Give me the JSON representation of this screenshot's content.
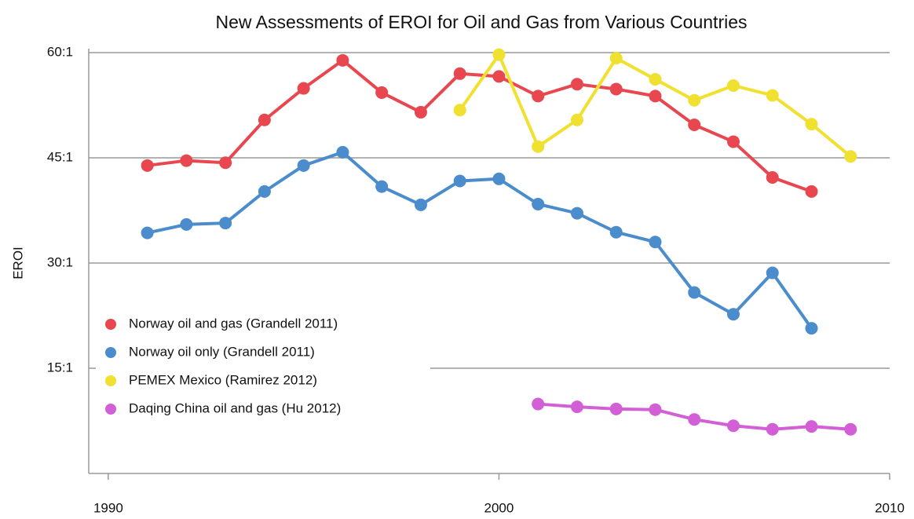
{
  "chart_data": {
    "type": "line",
    "title": "New Assessments of EROI for Oil and Gas from Various Countries",
    "ylabel": "EROI",
    "xlim": [
      1989.5,
      2010
    ],
    "xticks": [
      1990,
      2000,
      2010
    ],
    "ylim": [
      0,
      60
    ],
    "yticks": [
      {
        "value": 15,
        "label": "15:1"
      },
      {
        "value": 30,
        "label": "30:1"
      },
      {
        "value": 45,
        "label": "45:1"
      },
      {
        "value": 60,
        "label": "60:1"
      }
    ],
    "grid": true,
    "legend": "lower left",
    "series": [
      {
        "name": "Norway oil and gas (Grandell 2011)",
        "color": "#e8474f",
        "x": [
          1991,
          1992,
          1993,
          1994,
          1995,
          1996,
          1997,
          1998,
          1999,
          2000,
          2001,
          2002,
          2003,
          2004,
          2005,
          2006,
          2007,
          2008
        ],
        "values": [
          43.9,
          44.6,
          44.3,
          50.4,
          54.9,
          58.9,
          54.3,
          51.5,
          57.0,
          56.6,
          53.8,
          55.5,
          54.8,
          53.8,
          49.7,
          47.3,
          42.2,
          40.2
        ]
      },
      {
        "name": "Norway oil only (Grandell 2011)",
        "color": "#4a8ccc",
        "x": [
          1991,
          1992,
          1993,
          1994,
          1995,
          1996,
          1997,
          1998,
          1999,
          2000,
          2001,
          2002,
          2003,
          2004,
          2005,
          2006,
          2007,
          2008
        ],
        "values": [
          34.3,
          35.5,
          35.7,
          40.2,
          43.9,
          45.8,
          40.9,
          38.3,
          41.7,
          42.0,
          38.4,
          37.1,
          34.4,
          33.0,
          25.8,
          22.7,
          28.6,
          20.7
        ]
      },
      {
        "name": "PEMEX Mexico (Ramirez 2012)",
        "color": "#f0e030",
        "x": [
          1999,
          2000,
          2001,
          2002,
          2003,
          2004,
          2005,
          2006,
          2007,
          2008,
          2009
        ],
        "values": [
          51.8,
          59.7,
          46.6,
          50.4,
          59.2,
          56.2,
          53.2,
          55.3,
          53.9,
          49.8,
          45.2
        ]
      },
      {
        "name": "Daqing China oil and gas (Hu 2012)",
        "color": "#d25fd6",
        "x": [
          2001,
          2002,
          2003,
          2004,
          2005,
          2006,
          2007,
          2008,
          2009
        ],
        "values": [
          9.9,
          9.5,
          9.2,
          9.1,
          7.7,
          6.8,
          6.3,
          6.7,
          6.3
        ]
      }
    ]
  }
}
